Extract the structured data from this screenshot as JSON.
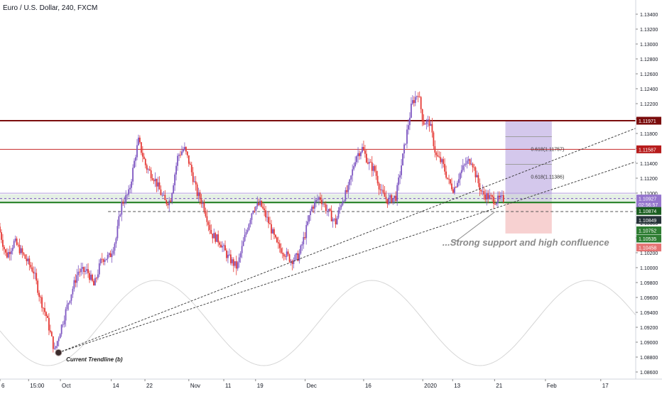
{
  "header": {
    "symbol_title": "Euro / U.S. Dollar, 240, FXCM"
  },
  "colors": {
    "bull": "#7e57c2",
    "bear": "#e53935",
    "bg": "#ffffff",
    "resistance_top": "#7b0d0d",
    "resistance_mid": "#c62828",
    "support": "#1b7a1b",
    "target_zone": "#c5b6e6",
    "stop_zone": "#f5c6c6",
    "trendline": "#333333",
    "axis_text": "#131722"
  },
  "chart_data": {
    "type": "candlestick",
    "y_range": [
      1.086,
      1.134
    ],
    "y_ticks": [
      1.134,
      1.132,
      1.13,
      1.128,
      1.126,
      1.124,
      1.122,
      1.12,
      1.118,
      1.116,
      1.114,
      1.112,
      1.11,
      1.108,
      1.106,
      1.104,
      1.102,
      1.1,
      1.098,
      1.096,
      1.094,
      1.092,
      1.09,
      1.088,
      1.086
    ],
    "y_tick_labels": [
      "1.13400",
      "1.13200",
      "1.13000",
      "1.12800",
      "1.12600",
      "1.12400",
      "1.12200",
      "1.12000",
      "1.11800",
      "1.11600",
      "1.11400",
      "1.11200",
      "1.11000",
      "1.10800",
      "1.10600",
      "1.10400",
      "1.10200",
      "1.10000",
      "1.09800",
      "1.09600",
      "1.09400",
      "1.09200",
      "1.09000",
      "1.08800",
      "1.08600"
    ],
    "x_labels": [
      {
        "label": "6",
        "t": 0
      },
      {
        "label": "15:00",
        "t": 0.045
      },
      {
        "label": "Oct",
        "t": 0.095
      },
      {
        "label": "14",
        "t": 0.175
      },
      {
        "label": "22",
        "t": 0.228
      },
      {
        "label": "Nov",
        "t": 0.297
      },
      {
        "label": "11",
        "t": 0.352
      },
      {
        "label": "19",
        "t": 0.402
      },
      {
        "label": "Dec",
        "t": 0.48
      },
      {
        "label": "16",
        "t": 0.572
      },
      {
        "label": "2020",
        "t": 0.665
      },
      {
        "label": "13",
        "t": 0.712
      },
      {
        "label": "21",
        "t": 0.778
      },
      {
        "label": "Feb",
        "t": 0.858
      },
      {
        "label": "17",
        "t": 0.945
      }
    ],
    "price_path": [
      [
        0,
        1.1055
      ],
      [
        0.012,
        1.1015
      ],
      [
        0.025,
        1.1035
      ],
      [
        0.04,
        1.1015
      ],
      [
        0.055,
        1.0995
      ],
      [
        0.065,
        1.096
      ],
      [
        0.075,
        1.0935
      ],
      [
        0.088,
        1.0888
      ],
      [
        0.1,
        1.0925
      ],
      [
        0.112,
        1.096
      ],
      [
        0.125,
        1.0995
      ],
      [
        0.14,
        1.0995
      ],
      [
        0.15,
        1.0975
      ],
      [
        0.162,
        1.1012
      ],
      [
        0.175,
        1.1015
      ],
      [
        0.185,
        1.104
      ],
      [
        0.193,
        1.1085
      ],
      [
        0.205,
        1.11
      ],
      [
        0.215,
        1.115
      ],
      [
        0.22,
        1.117
      ],
      [
        0.232,
        1.1135
      ],
      [
        0.245,
        1.112
      ],
      [
        0.255,
        1.11
      ],
      [
        0.262,
        1.1088
      ],
      [
        0.27,
        1.109
      ],
      [
        0.282,
        1.115
      ],
      [
        0.292,
        1.116
      ],
      [
        0.3,
        1.114
      ],
      [
        0.312,
        1.11
      ],
      [
        0.322,
        1.1085
      ],
      [
        0.335,
        1.1045
      ],
      [
        0.348,
        1.1035
      ],
      [
        0.36,
        1.1015
      ],
      [
        0.375,
        1.1
      ],
      [
        0.39,
        1.105
      ],
      [
        0.4,
        1.108
      ],
      [
        0.412,
        1.1085
      ],
      [
        0.425,
        1.106
      ],
      [
        0.438,
        1.103
      ],
      [
        0.45,
        1.102
      ],
      [
        0.46,
        1.101
      ],
      [
        0.472,
        1.1015
      ],
      [
        0.482,
        1.1045
      ],
      [
        0.492,
        1.108
      ],
      [
        0.505,
        1.1095
      ],
      [
        0.518,
        1.1075
      ],
      [
        0.53,
        1.106
      ],
      [
        0.54,
        1.109
      ],
      [
        0.55,
        1.1105
      ],
      [
        0.562,
        1.115
      ],
      [
        0.572,
        1.116
      ],
      [
        0.582,
        1.114
      ],
      [
        0.592,
        1.113
      ],
      [
        0.602,
        1.11
      ],
      [
        0.612,
        1.109
      ],
      [
        0.625,
        1.1095
      ],
      [
        0.64,
        1.117
      ],
      [
        0.65,
        1.122
      ],
      [
        0.66,
        1.1235
      ],
      [
        0.668,
        1.1195
      ],
      [
        0.678,
        1.1195
      ],
      [
        0.688,
        1.115
      ],
      [
        0.698,
        1.114
      ],
      [
        0.708,
        1.1115
      ],
      [
        0.716,
        1.1105
      ],
      [
        0.725,
        1.1125
      ],
      [
        0.735,
        1.114
      ],
      [
        0.744,
        1.1145
      ],
      [
        0.752,
        1.112
      ],
      [
        0.76,
        1.11
      ],
      [
        0.77,
        1.1095
      ],
      [
        0.782,
        1.109
      ],
      [
        0.792,
        1.1092
      ]
    ],
    "horizontal_levels": [
      {
        "price": 1.11971,
        "role": "resistance_top"
      },
      {
        "price": 1.11587,
        "role": "resistance_mid"
      },
      {
        "price": 1.10874,
        "role": "support"
      },
      {
        "price": 1.10752,
        "role": "support_dashed"
      },
      {
        "price": 1.10927,
        "role": "reference_purple"
      },
      {
        "price": 1.10999,
        "role": "reference_purple_light"
      }
    ],
    "support_band": [
      1.10874,
      1.10985
    ],
    "price_labels": [
      {
        "text": "1.11971",
        "price": 1.11971,
        "bg": "#7b0d0d",
        "fg": "#ffffff"
      },
      {
        "text": "1.11587",
        "price": 1.11587,
        "bg": "#b71c1c",
        "fg": "#ffffff"
      },
      {
        "text": "1.10927",
        "price": 1.10927,
        "bg": "#9575cd",
        "fg": "#ffffff"
      },
      {
        "text": "02:56:57",
        "price": 1.10847,
        "bg": "#9575cd",
        "fg": "#ffffff"
      },
      {
        "text": "1.10874",
        "price": 1.1076,
        "bg": "#1b5e20",
        "fg": "#ffffff"
      },
      {
        "text": "1.10849",
        "price": 1.1064,
        "bg": "#263238",
        "fg": "#ffffff"
      },
      {
        "text": "1.10752",
        "price": 1.105,
        "bg": "#2e7d32",
        "fg": "#ffffff"
      },
      {
        "text": "1.10535",
        "price": 1.1039,
        "bg": "#2e7d32",
        "fg": "#ffffff"
      },
      {
        "text": "1.10458",
        "price": 1.1027,
        "bg": "#e57373",
        "fg": "#ffffff"
      }
    ],
    "fib_labels": [
      {
        "text": "0.618(1.11757)",
        "price": 1.11757,
        "t": 0.835
      },
      {
        "text": "0.618(1.11386)",
        "price": 1.11386,
        "t": 0.835
      }
    ],
    "target_zone": {
      "t0": 0.795,
      "t1": 0.868,
      "price_top": 1.11971,
      "price_bottom": 1.10874
    },
    "stop_zone": {
      "t0": 0.795,
      "t1": 0.868,
      "price_top": 1.10874,
      "price_bottom": 1.10458
    },
    "trendlines": [
      {
        "from": [
          0.092,
          1.0886
        ],
        "to": [
          1.0,
          1.1187
        ]
      },
      {
        "from": [
          0.092,
          1.0886
        ],
        "to": [
          1.0,
          1.1142
        ]
      }
    ],
    "annotations": [
      {
        "text": "Current Trendline (b)",
        "t": 0.104,
        "price": 1.0882
      },
      {
        "text": "...Strong support and high confluence",
        "t": 0.696,
        "price": 1.10335
      }
    ],
    "marker": {
      "t": 0.092,
      "price": 1.0886
    },
    "arrow": {
      "from": [
        0.715,
        1.10339
      ],
      "to": [
        0.778,
        1.10746
      ]
    }
  }
}
